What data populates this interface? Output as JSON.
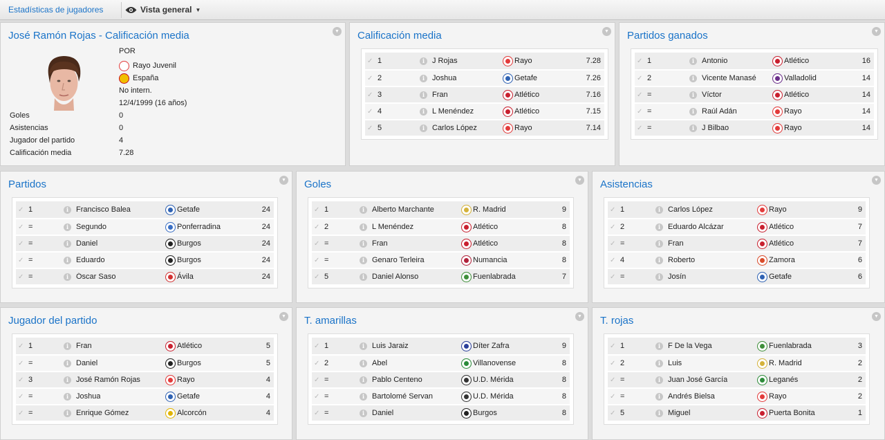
{
  "toolbar": {
    "breadcrumb": "Estadísticas de jugadores",
    "view_label": "Vista general"
  },
  "profile": {
    "title": "José Ramón Rojas - Calificación media",
    "position": "POR",
    "club": "Rayo Juvenil",
    "nation": "España",
    "intl": "No intern.",
    "dob": "12/4/1999 (16 años)",
    "stats": [
      {
        "label": "Goles",
        "value": "0"
      },
      {
        "label": "Asistencias",
        "value": "0"
      },
      {
        "label": "Jugador del partido",
        "value": "4"
      },
      {
        "label": "Calificación media",
        "value": "7.28"
      }
    ]
  },
  "panels": [
    {
      "title": "Calificación media",
      "rows": [
        {
          "rank": "1",
          "player": "J Rojas",
          "team": "Rayo",
          "value": "7.28",
          "crest": "#e23b3b"
        },
        {
          "rank": "2",
          "player": "Joshua",
          "team": "Getafe",
          "value": "7.26",
          "crest": "#2f62b3"
        },
        {
          "rank": "3",
          "player": "Fran",
          "team": "Atlético",
          "value": "7.16",
          "crest": "#c8202f"
        },
        {
          "rank": "4",
          "player": "L Menéndez",
          "team": "Atlético",
          "value": "7.15",
          "crest": "#c8202f"
        },
        {
          "rank": "5",
          "player": "Carlos López",
          "team": "Rayo",
          "value": "7.14",
          "crest": "#e23b3b"
        }
      ]
    },
    {
      "title": "Partidos ganados",
      "rows": [
        {
          "rank": "1",
          "player": "Antonio",
          "team": "Atlético",
          "value": "16",
          "crest": "#c8202f"
        },
        {
          "rank": "2",
          "player": "Vicente Manasé",
          "team": "Valladolid",
          "value": "14",
          "crest": "#6b2f8a"
        },
        {
          "rank": "=",
          "player": "Víctor",
          "team": "Atlético",
          "value": "14",
          "crest": "#c8202f"
        },
        {
          "rank": "=",
          "player": "Raúl Adán",
          "team": "Rayo",
          "value": "14",
          "crest": "#e23b3b"
        },
        {
          "rank": "=",
          "player": "J Bilbao",
          "team": "Rayo",
          "value": "14",
          "crest": "#e23b3b"
        }
      ]
    },
    {
      "title": "Partidos",
      "rows": [
        {
          "rank": "1",
          "player": "Francisco Balea",
          "team": "Getafe",
          "value": "24",
          "crest": "#2f62b3"
        },
        {
          "rank": "=",
          "player": "Segundo",
          "team": "Ponferradina",
          "value": "24",
          "crest": "#3a6fc4"
        },
        {
          "rank": "=",
          "player": "Daniel",
          "team": "Burgos",
          "value": "24",
          "crest": "#222222"
        },
        {
          "rank": "=",
          "player": "Eduardo",
          "team": "Burgos",
          "value": "24",
          "crest": "#222222"
        },
        {
          "rank": "=",
          "player": "Óscar Saso",
          "team": "Ávila",
          "value": "24",
          "crest": "#d23232"
        }
      ]
    },
    {
      "title": "Goles",
      "rows": [
        {
          "rank": "1",
          "player": "Alberto Marchante",
          "team": "R. Madrid",
          "value": "9",
          "crest": "#d4b23a"
        },
        {
          "rank": "2",
          "player": "L Menéndez",
          "team": "Atlético",
          "value": "8",
          "crest": "#c8202f"
        },
        {
          "rank": "=",
          "player": "Fran",
          "team": "Atlético",
          "value": "8",
          "crest": "#c8202f"
        },
        {
          "rank": "=",
          "player": "Genaro Terleira",
          "team": "Numancia",
          "value": "8",
          "crest": "#b0223a"
        },
        {
          "rank": "5",
          "player": "Daniel Alonso",
          "team": "Fuenlabrada",
          "value": "7",
          "crest": "#3f8f3a"
        }
      ]
    },
    {
      "title": "Asistencias",
      "rows": [
        {
          "rank": "1",
          "player": "Carlos López",
          "team": "Rayo",
          "value": "9",
          "crest": "#e23b3b"
        },
        {
          "rank": "2",
          "player": "Eduardo Alcázar",
          "team": "Atlético",
          "value": "7",
          "crest": "#c8202f"
        },
        {
          "rank": "=",
          "player": "Fran",
          "team": "Atlético",
          "value": "7",
          "crest": "#c8202f"
        },
        {
          "rank": "4",
          "player": "Roberto",
          "team": "Zamora",
          "value": "6",
          "crest": "#d94b2a"
        },
        {
          "rank": "=",
          "player": "Josín",
          "team": "Getafe",
          "value": "6",
          "crest": "#2f62b3"
        }
      ]
    },
    {
      "title": "Jugador del partido",
      "rows": [
        {
          "rank": "1",
          "player": "Fran",
          "team": "Atlético",
          "value": "5",
          "crest": "#c8202f"
        },
        {
          "rank": "=",
          "player": "Daniel",
          "team": "Burgos",
          "value": "5",
          "crest": "#222222"
        },
        {
          "rank": "3",
          "player": "José Ramón Rojas",
          "team": "Rayo",
          "value": "4",
          "crest": "#e23b3b"
        },
        {
          "rank": "=",
          "player": "Joshua",
          "team": "Getafe",
          "value": "4",
          "crest": "#2f62b3"
        },
        {
          "rank": "=",
          "player": "Enrique Gómez",
          "team": "Alcorcón",
          "value": "4",
          "crest": "#e0b400"
        }
      ]
    },
    {
      "title": "T. amarillas",
      "rows": [
        {
          "rank": "1",
          "player": "Luis Jaraiz",
          "team": "Díter Zafra",
          "value": "9",
          "crest": "#2a3f9a"
        },
        {
          "rank": "2",
          "player": "Abel",
          "team": "Villanovense",
          "value": "8",
          "crest": "#2a8a3a"
        },
        {
          "rank": "=",
          "player": "Pablo Centeno",
          "team": "U.D. Mérida",
          "value": "8",
          "crest": "#333333"
        },
        {
          "rank": "=",
          "player": "Bartolomé Servan",
          "team": "U.D. Mérida",
          "value": "8",
          "crest": "#333333"
        },
        {
          "rank": "=",
          "player": "Daniel",
          "team": "Burgos",
          "value": "8",
          "crest": "#222222"
        }
      ]
    },
    {
      "title": "T. rojas",
      "rows": [
        {
          "rank": "1",
          "player": "F De la Vega",
          "team": "Fuenlabrada",
          "value": "3",
          "crest": "#3f8f3a"
        },
        {
          "rank": "2",
          "player": "Luis",
          "team": "R. Madrid",
          "value": "2",
          "crest": "#d4b23a"
        },
        {
          "rank": "=",
          "player": "Juan José García",
          "team": "Leganés",
          "value": "2",
          "crest": "#2e8b3a"
        },
        {
          "rank": "=",
          "player": "Andrés Bielsa",
          "team": "Rayo",
          "value": "2",
          "crest": "#e23b3b"
        },
        {
          "rank": "5",
          "player": "Miguel",
          "team": "Puerta Bonita",
          "value": "1",
          "crest": "#c8202f"
        }
      ]
    }
  ]
}
